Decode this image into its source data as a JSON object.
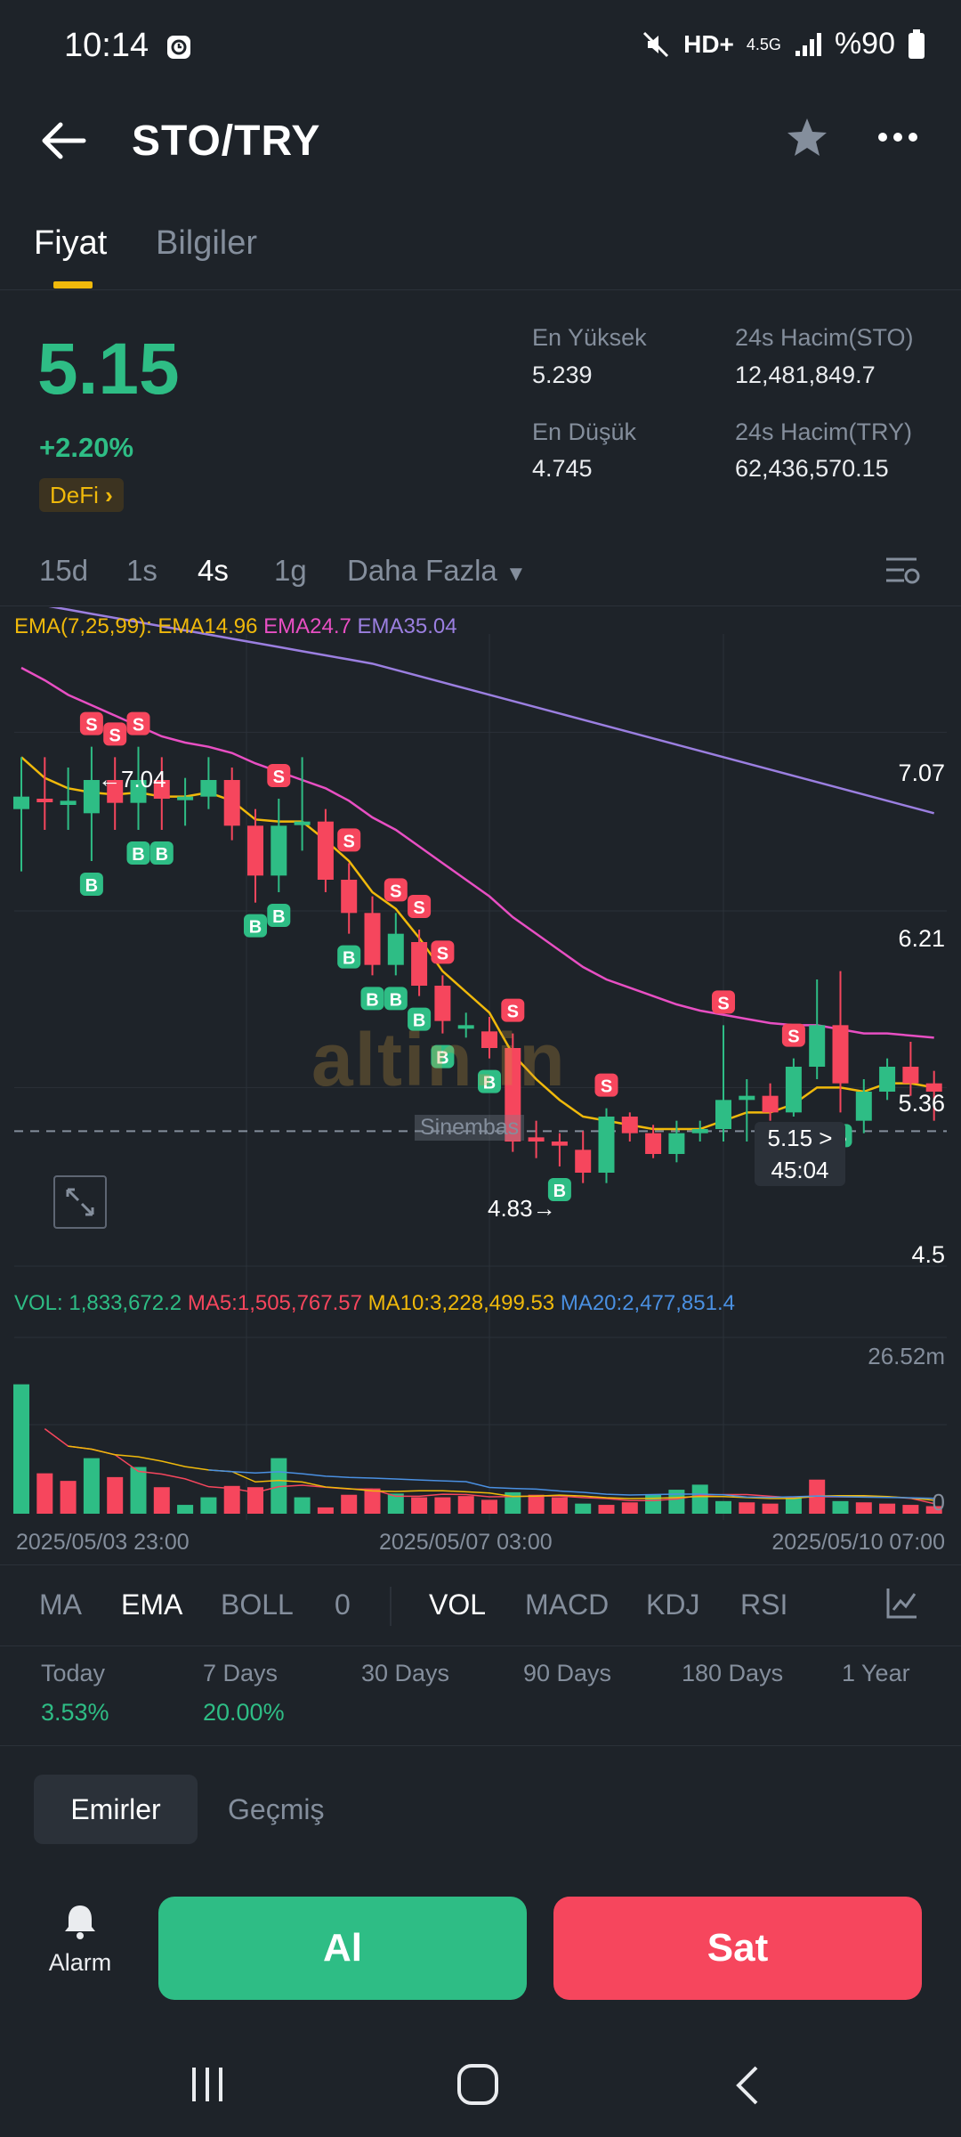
{
  "status_bar": {
    "time": "10:14",
    "network": "4.5G",
    "battery": "%90"
  },
  "header": {
    "title": "STO/TRY"
  },
  "tabs": [
    {
      "label": "Fiyat",
      "active": true
    },
    {
      "label": "Bilgiler",
      "active": false
    }
  ],
  "ticker": {
    "price": "5.15",
    "change": "+2.20%",
    "tag": "DeFi",
    "high_label": "En Yüksek",
    "high_value": "5.239",
    "low_label": "En Düşük",
    "low_value": "4.745",
    "vol_base_label": "24s Hacim(STO)",
    "vol_base_value": "12,481,849.7",
    "vol_quote_label": "24s Hacim(TRY)",
    "vol_quote_value": "62,436,570.15"
  },
  "timeframes": {
    "items": [
      "15d",
      "1s",
      "4s",
      "1g"
    ],
    "active": "4s",
    "more_label": "Daha Fazla"
  },
  "chart": {
    "ema_label": "EMA(7,25,99):",
    "ema7": "EMA14.96",
    "ema25": "EMA24.7",
    "ema99": "EMA35.04",
    "price_axis": [
      "7.07",
      "6.21",
      "5.36",
      "4.5"
    ],
    "current_price_label": "5.15 >",
    "countdown": "45:04",
    "max_label": "←7.04",
    "min_label": "4.83→",
    "watermark": "altin.in",
    "watermark_sub": "Sinembas",
    "vol_label": "VOL: 1,833,672.2",
    "ma5_label": "MA5:1,505,767.57",
    "ma10_label": "MA10:3,228,499.53",
    "ma20_label": "MA20:2,477,851.4",
    "vol_axis_top": "26.52m",
    "vol_axis_bottom": "0",
    "time_axis": [
      "2025/05/03 23:00",
      "2025/05/07 03:00",
      "2025/05/10 07:00"
    ],
    "marker_buy": "B",
    "marker_sell": "S",
    "colors": {
      "up": "#2ebd85",
      "down": "#f6465d",
      "ema7": "#f0b90b",
      "ema25": "#e84fc3",
      "ema99": "#9b7fe0",
      "ma20": "#4a90e2"
    }
  },
  "chart_data": {
    "type": "candlestick",
    "y_axis_ticks": [
      7.07,
      6.21,
      5.36,
      4.5
    ],
    "ylim": [
      4.5,
      7.5
    ],
    "candles": [
      {
        "o": 6.7,
        "c": 6.76,
        "h": 6.95,
        "l": 6.4
      },
      {
        "o": 6.75,
        "c": 6.74,
        "h": 6.95,
        "l": 6.6
      },
      {
        "o": 6.72,
        "c": 6.74,
        "h": 6.9,
        "l": 6.6
      },
      {
        "o": 6.68,
        "c": 6.84,
        "h": 7.0,
        "l": 6.45
      },
      {
        "o": 6.84,
        "c": 6.73,
        "h": 6.95,
        "l": 6.6
      },
      {
        "o": 6.73,
        "c": 6.84,
        "h": 7.0,
        "l": 6.6
      },
      {
        "o": 6.84,
        "c": 6.75,
        "h": 6.95,
        "l": 6.6
      },
      {
        "o": 6.75,
        "c": 6.76,
        "h": 6.85,
        "l": 6.62
      },
      {
        "o": 6.76,
        "c": 6.84,
        "h": 6.95,
        "l": 6.7
      },
      {
        "o": 6.84,
        "c": 6.62,
        "h": 6.9,
        "l": 6.55
      },
      {
        "o": 6.62,
        "c": 6.38,
        "h": 6.7,
        "l": 6.25
      },
      {
        "o": 6.38,
        "c": 6.62,
        "h": 6.75,
        "l": 6.3
      },
      {
        "o": 6.64,
        "c": 6.64,
        "h": 6.95,
        "l": 6.5
      },
      {
        "o": 6.64,
        "c": 6.36,
        "h": 6.7,
        "l": 6.3
      },
      {
        "o": 6.36,
        "c": 6.2,
        "h": 6.44,
        "l": 6.1
      },
      {
        "o": 6.2,
        "c": 5.95,
        "h": 6.28,
        "l": 5.9
      },
      {
        "o": 5.95,
        "c": 6.1,
        "h": 6.2,
        "l": 5.9
      },
      {
        "o": 6.06,
        "c": 5.85,
        "h": 6.12,
        "l": 5.8
      },
      {
        "o": 5.85,
        "c": 5.68,
        "h": 5.9,
        "l": 5.62
      },
      {
        "o": 5.66,
        "c": 5.66,
        "h": 5.72,
        "l": 5.6
      },
      {
        "o": 5.63,
        "c": 5.55,
        "h": 5.7,
        "l": 5.5
      },
      {
        "o": 5.55,
        "c": 5.1,
        "h": 5.62,
        "l": 5.05
      },
      {
        "o": 5.12,
        "c": 5.1,
        "h": 5.2,
        "l": 5.02
      },
      {
        "o": 5.1,
        "c": 5.08,
        "h": 5.14,
        "l": 4.98
      },
      {
        "o": 5.06,
        "c": 4.95,
        "h": 5.15,
        "l": 4.9
      },
      {
        "o": 4.95,
        "c": 5.22,
        "h": 5.26,
        "l": 4.9
      },
      {
        "o": 5.22,
        "c": 5.14,
        "h": 5.24,
        "l": 5.1
      },
      {
        "o": 5.14,
        "c": 5.04,
        "h": 5.18,
        "l": 5.02
      },
      {
        "o": 5.04,
        "c": 5.14,
        "h": 5.2,
        "l": 5.0
      },
      {
        "o": 5.14,
        "c": 5.16,
        "h": 5.2,
        "l": 5.1
      },
      {
        "o": 5.16,
        "c": 5.3,
        "h": 5.66,
        "l": 5.1
      },
      {
        "o": 5.3,
        "c": 5.32,
        "h": 5.4,
        "l": 5.1
      },
      {
        "o": 5.32,
        "c": 5.24,
        "h": 5.38,
        "l": 5.2
      },
      {
        "o": 5.24,
        "c": 5.46,
        "h": 5.5,
        "l": 5.22
      },
      {
        "o": 5.46,
        "c": 5.66,
        "h": 5.88,
        "l": 5.4
      },
      {
        "o": 5.66,
        "c": 5.38,
        "h": 5.92,
        "l": 5.24
      },
      {
        "o": 5.2,
        "c": 5.34,
        "h": 5.4,
        "l": 5.14
      },
      {
        "o": 5.34,
        "c": 5.46,
        "h": 5.5,
        "l": 5.3
      },
      {
        "o": 5.46,
        "c": 5.38,
        "h": 5.58,
        "l": 5.32
      },
      {
        "o": 5.38,
        "c": 5.34,
        "h": 5.44,
        "l": 5.2
      }
    ],
    "ema7": [
      6.95,
      6.85,
      6.8,
      6.78,
      6.77,
      6.78,
      6.76,
      6.76,
      6.78,
      6.74,
      6.65,
      6.64,
      6.64,
      6.55,
      6.45,
      6.3,
      6.22,
      6.08,
      5.92,
      5.82,
      5.72,
      5.52,
      5.4,
      5.3,
      5.22,
      5.2,
      5.18,
      5.16,
      5.16,
      5.16,
      5.2,
      5.24,
      5.24,
      5.28,
      5.36,
      5.36,
      5.34,
      5.38,
      5.38,
      5.36
    ],
    "ema25": [
      7.38,
      7.32,
      7.25,
      7.2,
      7.15,
      7.1,
      7.05,
      7.02,
      7.0,
      6.97,
      6.92,
      6.88,
      6.84,
      6.8,
      6.74,
      6.66,
      6.6,
      6.52,
      6.44,
      6.36,
      6.28,
      6.18,
      6.1,
      6.02,
      5.94,
      5.88,
      5.84,
      5.8,
      5.76,
      5.73,
      5.71,
      5.69,
      5.67,
      5.66,
      5.66,
      5.64,
      5.62,
      5.62,
      5.61,
      5.6
    ],
    "ema99": [
      7.7,
      7.68,
      7.66,
      7.64,
      7.62,
      7.6,
      7.58,
      7.56,
      7.54,
      7.52,
      7.5,
      7.48,
      7.46,
      7.44,
      7.42,
      7.4,
      7.37,
      7.34,
      7.31,
      7.28,
      7.25,
      7.22,
      7.19,
      7.16,
      7.13,
      7.1,
      7.07,
      7.04,
      7.01,
      6.98,
      6.95,
      6.92,
      6.89,
      6.86,
      6.83,
      6.8,
      6.77,
      6.74,
      6.71,
      6.68
    ],
    "buy_markers": [
      3,
      5,
      6,
      10,
      11,
      14,
      15,
      16,
      17,
      18,
      20,
      23,
      35
    ],
    "sell_markers": [
      3,
      4,
      5,
      11,
      14,
      16,
      17,
      18,
      21,
      25,
      30,
      33
    ],
    "volume_ylim": [
      0,
      26.52
    ],
    "volume": [
      {
        "v": 20.5,
        "up": true
      },
      {
        "v": 6.4,
        "up": false
      },
      {
        "v": 5.2,
        "up": false
      },
      {
        "v": 8.8,
        "up": true
      },
      {
        "v": 5.8,
        "up": false
      },
      {
        "v": 7.4,
        "up": true
      },
      {
        "v": 4.2,
        "up": false
      },
      {
        "v": 1.4,
        "up": true
      },
      {
        "v": 2.6,
        "up": true
      },
      {
        "v": 4.4,
        "up": false
      },
      {
        "v": 4.2,
        "up": false
      },
      {
        "v": 8.8,
        "up": true
      },
      {
        "v": 2.6,
        "up": true
      },
      {
        "v": 1.0,
        "up": false
      },
      {
        "v": 3.0,
        "up": false
      },
      {
        "v": 4.0,
        "up": false
      },
      {
        "v": 3.2,
        "up": true
      },
      {
        "v": 2.6,
        "up": false
      },
      {
        "v": 2.6,
        "up": false
      },
      {
        "v": 2.8,
        "up": false
      },
      {
        "v": 2.2,
        "up": false
      },
      {
        "v": 3.4,
        "up": true
      },
      {
        "v": 3.0,
        "up": false
      },
      {
        "v": 2.6,
        "up": false
      },
      {
        "v": 1.6,
        "up": true
      },
      {
        "v": 1.4,
        "up": false
      },
      {
        "v": 1.8,
        "up": false
      },
      {
        "v": 3.0,
        "up": true
      },
      {
        "v": 3.8,
        "up": true
      },
      {
        "v": 4.6,
        "up": true
      },
      {
        "v": 2.0,
        "up": true
      },
      {
        "v": 1.8,
        "up": false
      },
      {
        "v": 1.6,
        "up": false
      },
      {
        "v": 2.6,
        "up": true
      },
      {
        "v": 5.4,
        "up": false
      },
      {
        "v": 2.0,
        "up": true
      },
      {
        "v": 1.8,
        "up": false
      },
      {
        "v": 1.6,
        "up": false
      },
      {
        "v": 1.4,
        "up": false
      },
      {
        "v": 1.2,
        "up": false
      }
    ]
  },
  "indicators": {
    "main": [
      "MA",
      "EMA",
      "BOLL",
      "0"
    ],
    "main_active": "EMA",
    "sub": [
      "VOL",
      "MACD",
      "KDJ",
      "RSI"
    ],
    "sub_active": "VOL"
  },
  "performance": [
    {
      "label": "Today",
      "value": "3.53%"
    },
    {
      "label": "7 Days",
      "value": "20.00%"
    },
    {
      "label": "30 Days",
      "value": ""
    },
    {
      "label": "90 Days",
      "value": ""
    },
    {
      "label": "180 Days",
      "value": ""
    },
    {
      "label": "1 Year",
      "value": ""
    }
  ],
  "orders": {
    "tab_active": "Emirler",
    "tab_inactive": "Geçmiş"
  },
  "actions": {
    "alarm_label": "Alarm",
    "buy_label": "Al",
    "sell_label": "Sat"
  }
}
